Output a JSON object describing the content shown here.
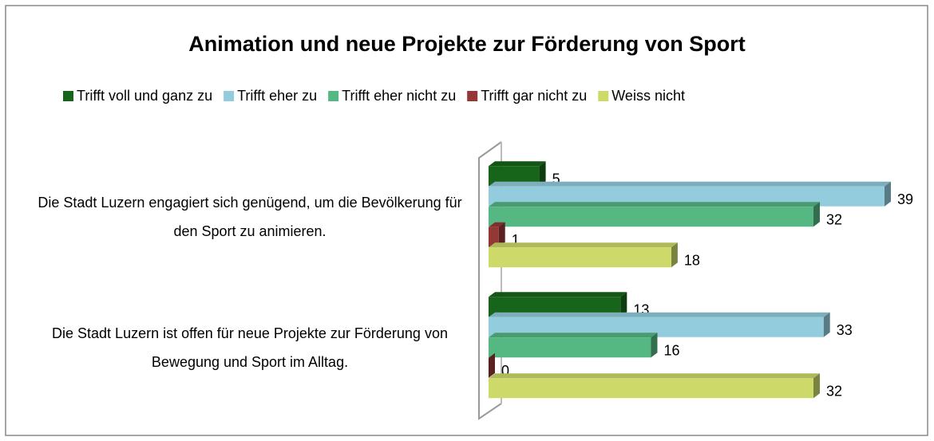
{
  "chart_data": {
    "type": "bar3d_horizontal",
    "title": "Animation und neue Projekte zur Förderung von Sport",
    "categories": [
      "Die Stadt Luzern engagiert sich genügend, um die Bevölkerung für den Sport zu animieren.",
      "Die Stadt Luzern ist offen für neue Projekte zur Förderung von Bewegung und Sport im Alltag."
    ],
    "series": [
      {
        "name": "Trifft voll und ganz zu",
        "color": "#17651a",
        "values": [
          5,
          13
        ]
      },
      {
        "name": "Trifft eher zu",
        "color": "#93cddd",
        "values": [
          39,
          33
        ]
      },
      {
        "name": "Trifft eher nicht zu",
        "color": "#55b883",
        "values": [
          32,
          16
        ]
      },
      {
        "name": "Trifft gar nicht zu",
        "color": "#953735",
        "values": [
          1,
          0
        ]
      },
      {
        "name": "Weiss nicht",
        "color": "#cdda6a",
        "values": [
          18,
          32
        ]
      }
    ],
    "legend": "top"
  }
}
